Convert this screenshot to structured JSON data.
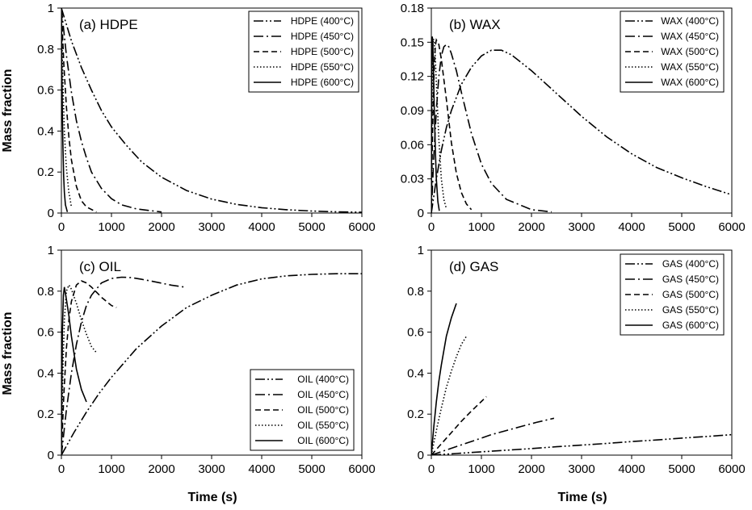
{
  "figure": {
    "ylabel": "Mass fraction",
    "xlabel": "Time (s)"
  },
  "chart_data": [
    {
      "type": "line",
      "title": "(a) HDPE",
      "xlabel": "",
      "ylabel": "Mass fraction",
      "xlim": [
        0,
        6000
      ],
      "ylim": [
        0,
        1
      ],
      "xticks": [
        "0",
        "1000",
        "2000",
        "3000",
        "4000",
        "5000",
        "6000"
      ],
      "yticks": [
        "0",
        "0.2",
        "0.4",
        "0.6",
        "0.8",
        "1"
      ],
      "legend_position": "top-right",
      "series": [
        {
          "name": "HDPE (400°C)",
          "dash": "dashdotdot",
          "x": [
            0,
            200,
            400,
            600,
            800,
            1000,
            1300,
            1600,
            2000,
            2500,
            3000,
            3500,
            4000,
            4500,
            5000,
            5500,
            6000
          ],
          "y": [
            1.0,
            0.84,
            0.71,
            0.6,
            0.5,
            0.42,
            0.33,
            0.25,
            0.175,
            0.11,
            0.068,
            0.042,
            0.026,
            0.016,
            0.01,
            0.006,
            0.004
          ]
        },
        {
          "name": "HDPE (450°C)",
          "dash": "dashdot",
          "x": [
            0,
            100,
            200,
            300,
            400,
            500,
            600,
            800,
            1000,
            1200,
            1500,
            2000
          ],
          "y": [
            1.0,
            0.77,
            0.59,
            0.45,
            0.35,
            0.27,
            0.2,
            0.12,
            0.07,
            0.04,
            0.02,
            0.005
          ]
        },
        {
          "name": "HDPE (500°C)",
          "dash": "dash",
          "x": [
            0,
            50,
            100,
            150,
            200,
            300,
            400,
            500,
            700
          ],
          "y": [
            1.0,
            0.72,
            0.52,
            0.37,
            0.26,
            0.13,
            0.06,
            0.03,
            0.005
          ]
        },
        {
          "name": "HDPE (550°C)",
          "dash": "dot",
          "x": [
            0,
            20,
            40,
            60,
            80,
            100,
            150,
            200
          ],
          "y": [
            1.0,
            0.75,
            0.55,
            0.4,
            0.3,
            0.22,
            0.1,
            0.03
          ]
        },
        {
          "name": "HDPE (600°C)",
          "dash": "solid",
          "x": [
            0,
            10,
            20,
            30,
            45,
            60,
            80,
            120
          ],
          "y": [
            1.0,
            0.7,
            0.48,
            0.33,
            0.18,
            0.1,
            0.04,
            0.005
          ]
        }
      ]
    },
    {
      "type": "line",
      "title": "(b) WAX",
      "xlabel": "",
      "ylabel": "",
      "xlim": [
        0,
        6000
      ],
      "ylim": [
        0,
        0.18
      ],
      "xticks": [
        "0",
        "1000",
        "2000",
        "3000",
        "4000",
        "5000",
        "6000"
      ],
      "yticks": [
        "0",
        "0.03",
        "0.06",
        "0.09",
        "0.12",
        "0.15",
        "0.18"
      ],
      "legend_position": "top-right",
      "series": [
        {
          "name": "WAX (400°C)",
          "dash": "dashdotdot",
          "x": [
            0,
            100,
            200,
            300,
            400,
            600,
            800,
            1000,
            1200,
            1400,
            1600,
            2000,
            2500,
            3000,
            3500,
            4000,
            4500,
            5000,
            5500,
            6000
          ],
          "y": [
            0,
            0.03,
            0.055,
            0.075,
            0.09,
            0.113,
            0.128,
            0.138,
            0.143,
            0.143,
            0.139,
            0.125,
            0.105,
            0.085,
            0.067,
            0.052,
            0.04,
            0.031,
            0.023,
            0.016
          ]
        },
        {
          "name": "WAX (450°C)",
          "dash": "dashdot",
          "x": [
            0,
            50,
            100,
            150,
            200,
            250,
            300,
            350,
            400,
            500,
            600,
            800,
            1000,
            1200,
            1500,
            2000,
            2400
          ],
          "y": [
            0,
            0.05,
            0.09,
            0.12,
            0.138,
            0.146,
            0.148,
            0.146,
            0.14,
            0.125,
            0.106,
            0.07,
            0.043,
            0.026,
            0.012,
            0.003,
            0.001
          ]
        },
        {
          "name": "WAX (500°C)",
          "dash": "dash",
          "x": [
            0,
            20,
            40,
            60,
            80,
            100,
            150,
            200,
            300,
            400,
            500,
            600,
            700,
            800
          ],
          "y": [
            0,
            0.06,
            0.1,
            0.13,
            0.147,
            0.152,
            0.148,
            0.135,
            0.1,
            0.062,
            0.035,
            0.018,
            0.008,
            0.003
          ]
        },
        {
          "name": "WAX (550°C)",
          "dash": "dot",
          "x": [
            0,
            10,
            20,
            30,
            40,
            60,
            80,
            100,
            150,
            200,
            250,
            300
          ],
          "y": [
            0,
            0.07,
            0.12,
            0.145,
            0.153,
            0.15,
            0.135,
            0.115,
            0.065,
            0.03,
            0.012,
            0.004
          ]
        },
        {
          "name": "WAX (600°C)",
          "dash": "solid",
          "x": [
            0,
            5,
            10,
            15,
            20,
            30,
            40,
            60,
            80,
            100,
            130,
            160
          ],
          "y": [
            0,
            0.08,
            0.13,
            0.15,
            0.155,
            0.148,
            0.13,
            0.09,
            0.055,
            0.03,
            0.01,
            0.002
          ]
        }
      ]
    },
    {
      "type": "line",
      "title": "(c) OIL",
      "xlabel": "Time (s)",
      "ylabel": "Mass fraction",
      "xlim": [
        0,
        6000
      ],
      "ylim": [
        0,
        1
      ],
      "xticks": [
        "0",
        "1000",
        "2000",
        "3000",
        "4000",
        "5000",
        "6000"
      ],
      "yticks": [
        "0",
        "0.2",
        "0.4",
        "0.6",
        "0.8",
        "1"
      ],
      "legend_position": "bottom-right",
      "series": [
        {
          "name": "OIL (400°C)",
          "dash": "dashdotdot",
          "x": [
            0,
            250,
            500,
            750,
            1000,
            1500,
            2000,
            2500,
            3000,
            3500,
            4000,
            4500,
            5000,
            5500,
            6000
          ],
          "y": [
            0,
            0.11,
            0.21,
            0.3,
            0.38,
            0.52,
            0.63,
            0.72,
            0.78,
            0.83,
            0.86,
            0.875,
            0.882,
            0.885,
            0.885
          ]
        },
        {
          "name": "OIL (450°C)",
          "dash": "dashdot",
          "x": [
            0,
            100,
            200,
            300,
            400,
            500,
            600,
            800,
            1000,
            1200,
            1400,
            1600,
            1800,
            2000,
            2200,
            2450
          ],
          "y": [
            0,
            0.22,
            0.4,
            0.54,
            0.65,
            0.73,
            0.78,
            0.84,
            0.862,
            0.868,
            0.866,
            0.858,
            0.849,
            0.839,
            0.829,
            0.82
          ]
        },
        {
          "name": "OIL (500°C)",
          "dash": "dash",
          "x": [
            0,
            50,
            100,
            150,
            200,
            300,
            400,
            500,
            600,
            800,
            1000,
            1100
          ],
          "y": [
            0,
            0.3,
            0.52,
            0.66,
            0.75,
            0.83,
            0.85,
            0.84,
            0.82,
            0.77,
            0.73,
            0.72
          ]
        },
        {
          "name": "OIL (550°C)",
          "dash": "dot",
          "x": [
            0,
            30,
            60,
            100,
            150,
            200,
            300,
            400,
            500,
            600,
            700
          ],
          "y": [
            0,
            0.42,
            0.66,
            0.8,
            0.83,
            0.81,
            0.74,
            0.66,
            0.59,
            0.53,
            0.5
          ]
        },
        {
          "name": "OIL (600°C)",
          "dash": "solid",
          "x": [
            0,
            20,
            40,
            60,
            100,
            150,
            200,
            300,
            400,
            500
          ],
          "y": [
            0,
            0.6,
            0.78,
            0.82,
            0.76,
            0.68,
            0.58,
            0.42,
            0.32,
            0.26
          ]
        }
      ]
    },
    {
      "type": "line",
      "title": "(d) GAS",
      "xlabel": "Time (s)",
      "ylabel": "",
      "xlim": [
        0,
        6000
      ],
      "ylim": [
        0,
        1
      ],
      "xticks": [
        "0",
        "1000",
        "2000",
        "3000",
        "4000",
        "5000",
        "6000"
      ],
      "yticks": [
        "0",
        "0.2",
        "0.4",
        "0.6",
        "0.8",
        "1"
      ],
      "legend_position": "top-right",
      "series": [
        {
          "name": "GAS (400°C)",
          "dash": "dashdotdot",
          "x": [
            0,
            500,
            1000,
            1500,
            2000,
            2500,
            3000,
            3500,
            4000,
            4500,
            5000,
            5500,
            6000
          ],
          "y": [
            0,
            0.008,
            0.016,
            0.024,
            0.032,
            0.041,
            0.049,
            0.057,
            0.066,
            0.074,
            0.083,
            0.091,
            0.1
          ]
        },
        {
          "name": "GAS (450°C)",
          "dash": "dashdot",
          "x": [
            0,
            300,
            600,
            900,
            1200,
            1500,
            1800,
            2100,
            2450
          ],
          "y": [
            0,
            0.025,
            0.05,
            0.075,
            0.1,
            0.12,
            0.14,
            0.16,
            0.18
          ]
        },
        {
          "name": "GAS (500°C)",
          "dash": "dash",
          "x": [
            0,
            200,
            400,
            600,
            800,
            1000,
            1100
          ],
          "y": [
            0,
            0.055,
            0.11,
            0.165,
            0.215,
            0.262,
            0.285
          ]
        },
        {
          "name": "GAS (550°C)",
          "dash": "dot",
          "x": [
            0,
            100,
            200,
            300,
            400,
            500,
            600,
            700
          ],
          "y": [
            0,
            0.12,
            0.23,
            0.33,
            0.41,
            0.48,
            0.54,
            0.58
          ]
        },
        {
          "name": "GAS (600°C)",
          "dash": "solid",
          "x": [
            0,
            50,
            100,
            150,
            200,
            300,
            400,
            500
          ],
          "y": [
            0,
            0.14,
            0.26,
            0.36,
            0.44,
            0.58,
            0.67,
            0.74
          ]
        }
      ]
    }
  ]
}
